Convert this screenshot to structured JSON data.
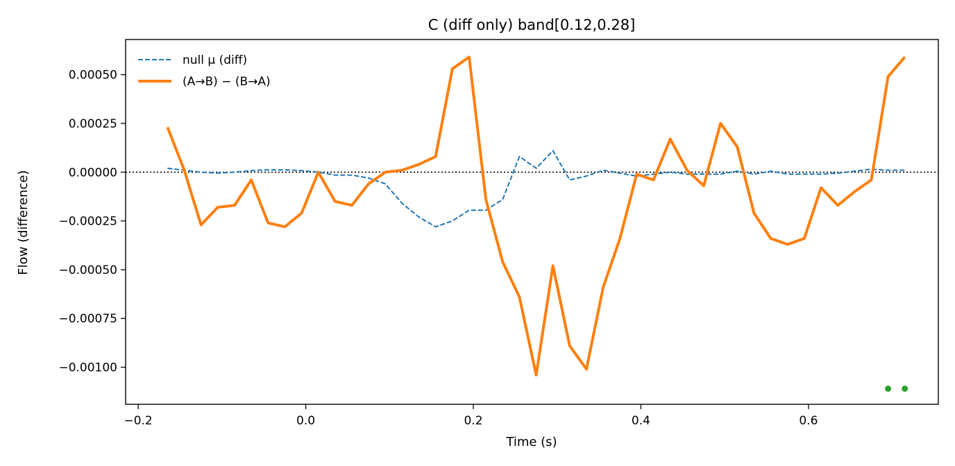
{
  "chart_data": {
    "type": "line",
    "title": "C (diff only)   band[0.12,0.28]",
    "xlabel": "Time (s)",
    "ylabel": "Flow (difference)",
    "xlim": [
      -0.215,
      0.755
    ],
    "ylim": [
      -0.00119,
      0.00068
    ],
    "xticks": [
      -0.2,
      0.0,
      0.2,
      0.4,
      0.6
    ],
    "xtick_labels": [
      "−0.2",
      "0.0",
      "0.2",
      "0.4",
      "0.6"
    ],
    "yticks": [
      0.0005,
      0.00025,
      0.0,
      -0.00025,
      -0.0005,
      -0.00075,
      -0.001
    ],
    "ytick_labels": [
      "0.00050",
      "0.00025",
      "0.00000",
      "−0.00025",
      "−0.00050",
      "−0.00075",
      "−0.00100"
    ],
    "grid": false,
    "legend_position": "upper-left",
    "reference_line": {
      "y": 0.0,
      "style": "dotted",
      "color": "#000000"
    },
    "series": [
      {
        "name": "null μ (diff)",
        "style": "dashed",
        "color": "#1f77b4",
        "x": [
          -0.165,
          -0.145,
          -0.125,
          -0.105,
          -0.085,
          -0.065,
          -0.045,
          -0.025,
          -0.005,
          0.015,
          0.035,
          0.055,
          0.075,
          0.095,
          0.115,
          0.135,
          0.155,
          0.175,
          0.195,
          0.215,
          0.235,
          0.255,
          0.275,
          0.295,
          0.315,
          0.335,
          0.355,
          0.375,
          0.395,
          0.415,
          0.435,
          0.455,
          0.475,
          0.495,
          0.515,
          0.535,
          0.555,
          0.575,
          0.595,
          0.615,
          0.635,
          0.655,
          0.675,
          0.695,
          0.715
        ],
        "y": [
          2e-05,
          1e-05,
          0.0,
          -5e-06,
          0.0,
          8e-06,
          1.2e-05,
          1.2e-05,
          8e-06,
          0.0,
          -1.5e-05,
          -1.5e-05,
          -3e-05,
          -6e-05,
          -0.00016,
          -0.00023,
          -0.00028,
          -0.00025,
          -0.000195,
          -0.000195,
          -0.00014,
          8e-05,
          2e-05,
          0.00011,
          -4e-05,
          -2e-05,
          1e-05,
          -5e-06,
          -2e-05,
          -1e-05,
          0.0,
          -1e-05,
          -1e-05,
          -1e-05,
          5e-06,
          -1e-05,
          5e-06,
          -1e-05,
          -1e-05,
          -1e-05,
          -5e-06,
          5e-06,
          1.5e-05,
          1e-05,
          1e-05
        ]
      },
      {
        "name": "(A→B) − (B→A)",
        "style": "solid",
        "color": "#ff7f0e",
        "x": [
          -0.165,
          -0.145,
          -0.125,
          -0.105,
          -0.085,
          -0.065,
          -0.045,
          -0.025,
          -0.005,
          0.015,
          0.035,
          0.055,
          0.075,
          0.095,
          0.115,
          0.135,
          0.155,
          0.175,
          0.195,
          0.215,
          0.235,
          0.255,
          0.275,
          0.295,
          0.315,
          0.335,
          0.355,
          0.375,
          0.395,
          0.415,
          0.435,
          0.455,
          0.475,
          0.495,
          0.515,
          0.535,
          0.555,
          0.575,
          0.595,
          0.615,
          0.635,
          0.655,
          0.675,
          0.695,
          0.715
        ],
        "y": [
          0.00023,
          1e-05,
          -0.00027,
          -0.00018,
          -0.00017,
          -4e-05,
          -0.00026,
          -0.00028,
          -0.00021,
          0.0,
          -0.00015,
          -0.00017,
          -6e-05,
          0.0,
          1e-05,
          4e-05,
          8e-05,
          0.00053,
          0.00059,
          -0.00014,
          -0.00046,
          -0.00064,
          -0.00104,
          -0.00048,
          -0.00089,
          -0.00101,
          -0.00059,
          -0.00034,
          -1e-05,
          -4e-05,
          0.00017,
          1e-05,
          -7e-05,
          0.00025,
          0.00013,
          -0.00021,
          -0.00034,
          -0.00037,
          -0.00034,
          -8e-05,
          -0.00017,
          -0.0001,
          -4e-05,
          0.00049,
          0.00059
        ]
      }
    ],
    "markers": {
      "color": "#2ca02c",
      "x": [
        0.695,
        0.715
      ],
      "y": [
        -0.00111,
        -0.00111
      ]
    }
  }
}
